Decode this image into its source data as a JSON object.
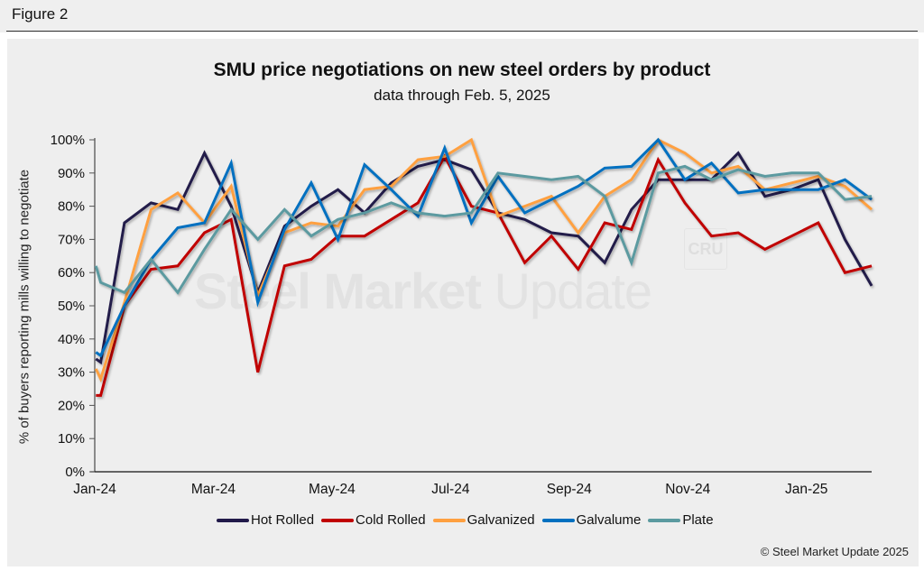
{
  "figure_label": "Figure 2",
  "copyright": "© Steel Market Update 2025",
  "watermark": {
    "bold": "Steel Market",
    "light": " Update",
    "badge": "CRU"
  },
  "chart_data": {
    "type": "line",
    "title": "SMU price negotiations on new steel orders by product",
    "subtitle": "data through Feb. 5, 2025",
    "xlabel": "",
    "ylabel": "% of buyers reporting mills willing to negotiate",
    "ylim": [
      0,
      100
    ],
    "yticks": [
      "0%",
      "10%",
      "20%",
      "30%",
      "40%",
      "50%",
      "60%",
      "70%",
      "80%",
      "90%",
      "100%"
    ],
    "xticks": [
      "Jan-24",
      "Mar-24",
      "May-24",
      "Jul-24",
      "Sep-24",
      "Nov-24",
      "Jan-25"
    ],
    "xtick_months": [
      0,
      2,
      4,
      6,
      8,
      10,
      12
    ],
    "xlim_months": [
      0,
      13.1
    ],
    "grid": false,
    "legend_position": "bottom",
    "x_months": [
      0.02,
      0.1,
      0.5,
      0.95,
      1.4,
      1.85,
      2.3,
      2.75,
      3.2,
      3.65,
      4.1,
      4.55,
      5.0,
      5.45,
      5.9,
      6.35,
      6.8,
      7.25,
      7.7,
      8.15,
      8.6,
      9.05,
      9.5,
      9.95,
      10.4,
      10.85,
      11.3,
      11.75,
      12.2,
      12.65,
      13.1
    ],
    "series": [
      {
        "name": "Hot Rolled",
        "color": "#211a4a",
        "values": [
          34,
          33,
          75,
          81,
          79,
          96,
          80,
          54,
          74,
          80,
          85,
          78,
          87,
          92,
          94,
          91,
          78,
          76,
          72,
          71,
          63,
          79,
          88,
          88,
          88,
          96,
          83,
          85,
          88,
          70,
          56
        ]
      },
      {
        "name": "Cold Rolled",
        "color": "#c00000",
        "values": [
          23,
          23,
          50,
          61,
          62,
          72,
          76,
          30,
          62,
          64,
          71,
          71,
          76,
          81,
          95,
          80,
          78,
          63,
          71,
          61,
          75,
          73,
          94,
          81,
          71,
          72,
          67,
          71,
          75,
          60,
          62
        ]
      },
      {
        "name": "Galvanized",
        "color": "#ffa040",
        "values": [
          31,
          28,
          51,
          79,
          84,
          75,
          86,
          53,
          72,
          75,
          74,
          85,
          86,
          94,
          95,
          100,
          77,
          80,
          83,
          72,
          83,
          88,
          100,
          96,
          90,
          92,
          85,
          87,
          89,
          86,
          79
        ]
      },
      {
        "name": "Galvalume",
        "color": "#0070c0",
        "values": [
          36,
          35,
          50,
          64,
          73.5,
          75,
          93,
          51,
          73,
          87,
          70,
          92.5,
          85,
          77,
          97.5,
          75,
          89,
          78,
          82,
          86,
          91.5,
          92,
          100,
          88,
          93,
          84,
          85,
          85,
          85,
          88,
          82
        ]
      },
      {
        "name": "Plate",
        "color": "#5b9aa0",
        "values": [
          62,
          57,
          54,
          64,
          54,
          67,
          79,
          70,
          79,
          71,
          76,
          78,
          81,
          78,
          77,
          78,
          90,
          89,
          88,
          89,
          83,
          63,
          90,
          92,
          88,
          91,
          89,
          90,
          90,
          82,
          83
        ]
      }
    ]
  }
}
